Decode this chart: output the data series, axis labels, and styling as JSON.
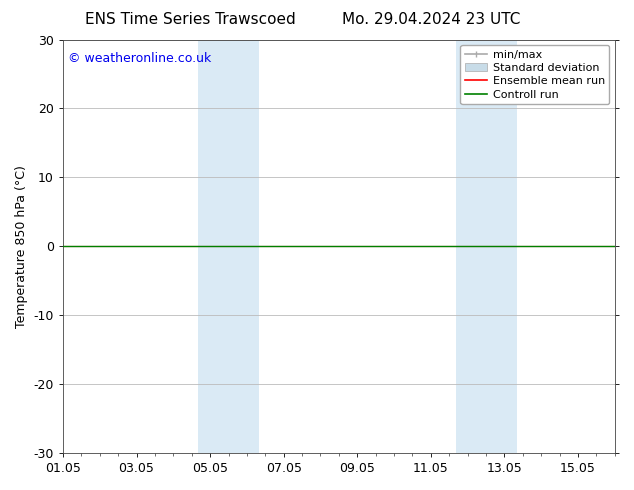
{
  "title_left": "ENS Time Series Trawscoed",
  "title_right": "Mo. 29.04.2024 23 UTC",
  "ylabel": "Temperature 850 hPa (°C)",
  "ylim": [
    -30,
    30
  ],
  "yticks": [
    -30,
    -20,
    -10,
    0,
    10,
    20,
    30
  ],
  "xtick_labels": [
    "01.05",
    "03.05",
    "05.05",
    "07.05",
    "09.05",
    "11.05",
    "13.05",
    "15.05"
  ],
  "xtick_positions": [
    0,
    2,
    4,
    6,
    8,
    10,
    12,
    14
  ],
  "xlim": [
    0,
    15
  ],
  "shaded_bands": [
    {
      "x_start": 3.67,
      "x_end": 5.33
    },
    {
      "x_start": 10.67,
      "x_end": 12.33
    }
  ],
  "control_run_y": 0.0,
  "ensemble_mean_y": 0.0,
  "watermark": "© weatheronline.co.uk",
  "watermark_color": "#0000ee",
  "bg_color": "#ffffff",
  "plot_bg_color": "#ffffff",
  "shading_color": "#daeaf5",
  "legend_entries": [
    "min/max",
    "Standard deviation",
    "Ensemble mean run",
    "Controll run"
  ],
  "control_run_color": "#008000",
  "ensemble_mean_color": "#ff0000",
  "minmax_color": "#aaaaaa",
  "stddev_color": "#c8dce8",
  "title_fontsize": 11,
  "label_fontsize": 9,
  "tick_fontsize": 9,
  "watermark_fontsize": 9,
  "legend_fontsize": 8
}
